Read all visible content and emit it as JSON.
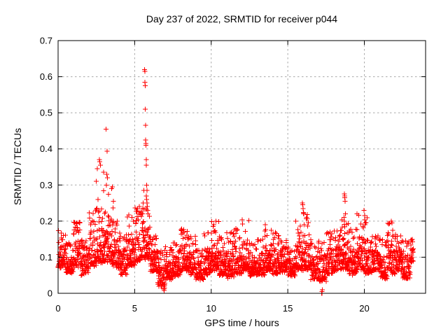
{
  "chart_data": {
    "type": "scatter",
    "title": "Day 237 of 2022, SRMTID for receiver p044",
    "xlabel": "GPS time / hours",
    "ylabel": "SRMTID / TECUs",
    "xlim": [
      0,
      24
    ],
    "ylim": [
      0,
      0.7
    ],
    "xticks": [
      "0",
      "5",
      "10",
      "15",
      "20"
    ],
    "xtick_values": [
      0,
      5,
      10,
      15,
      20
    ],
    "yticks": [
      "0",
      "0.1",
      "0.2",
      "0.3",
      "0.4",
      "0.5",
      "0.6",
      "0.7"
    ],
    "ytick_values": [
      0,
      0.1,
      0.2,
      0.3,
      0.4,
      0.5,
      0.6,
      0.7
    ],
    "grid": true,
    "legend_position": "none",
    "marker": {
      "shape": "plus",
      "color": "#ff0000",
      "size": 7
    },
    "data_extent_hours": [
      0.0,
      23.2
    ],
    "baseline_bins_format": [
      "t_start_h",
      "t_end_h",
      "y_min_TECU",
      "y_max_TECU",
      "n_points"
    ],
    "baseline_bins": [
      [
        0.0,
        0.5,
        0.06,
        0.18,
        60
      ],
      [
        0.5,
        1.0,
        0.05,
        0.14,
        60
      ],
      [
        1.0,
        1.5,
        0.06,
        0.2,
        60
      ],
      [
        1.5,
        2.0,
        0.04,
        0.15,
        60
      ],
      [
        2.0,
        2.5,
        0.06,
        0.23,
        60
      ],
      [
        2.5,
        3.0,
        0.07,
        0.24,
        60
      ],
      [
        3.0,
        3.5,
        0.07,
        0.23,
        60
      ],
      [
        3.5,
        4.0,
        0.06,
        0.2,
        60
      ],
      [
        4.0,
        4.5,
        0.04,
        0.17,
        60
      ],
      [
        4.5,
        5.0,
        0.06,
        0.22,
        60
      ],
      [
        5.0,
        5.5,
        0.07,
        0.24,
        60
      ],
      [
        5.5,
        6.0,
        0.08,
        0.24,
        60
      ],
      [
        6.0,
        6.5,
        0.05,
        0.16,
        60
      ],
      [
        6.5,
        7.0,
        0.01,
        0.12,
        60
      ],
      [
        7.0,
        7.5,
        0.03,
        0.13,
        60
      ],
      [
        7.5,
        8.0,
        0.04,
        0.14,
        60
      ],
      [
        8.0,
        8.5,
        0.05,
        0.18,
        60
      ],
      [
        8.5,
        9.0,
        0.04,
        0.16,
        60
      ],
      [
        9.0,
        9.5,
        0.03,
        0.12,
        60
      ],
      [
        9.5,
        10.0,
        0.04,
        0.17,
        60
      ],
      [
        10.0,
        10.5,
        0.05,
        0.2,
        60
      ],
      [
        10.5,
        11.0,
        0.04,
        0.16,
        60
      ],
      [
        11.0,
        11.5,
        0.03,
        0.17,
        60
      ],
      [
        11.5,
        12.0,
        0.04,
        0.18,
        60
      ],
      [
        12.0,
        12.5,
        0.05,
        0.21,
        60
      ],
      [
        12.5,
        13.0,
        0.04,
        0.14,
        60
      ],
      [
        13.0,
        13.5,
        0.04,
        0.15,
        60
      ],
      [
        13.5,
        14.0,
        0.05,
        0.19,
        60
      ],
      [
        14.0,
        14.5,
        0.04,
        0.17,
        60
      ],
      [
        14.5,
        15.0,
        0.05,
        0.15,
        60
      ],
      [
        15.0,
        15.5,
        0.04,
        0.13,
        60
      ],
      [
        15.5,
        16.0,
        0.05,
        0.2,
        60
      ],
      [
        16.0,
        16.5,
        0.05,
        0.23,
        60
      ],
      [
        16.5,
        17.0,
        0.03,
        0.14,
        60
      ],
      [
        17.0,
        17.5,
        0.02,
        0.15,
        60
      ],
      [
        17.5,
        18.0,
        0.04,
        0.17,
        60
      ],
      [
        18.0,
        18.5,
        0.05,
        0.18,
        60
      ],
      [
        18.5,
        19.0,
        0.05,
        0.21,
        60
      ],
      [
        19.0,
        19.5,
        0.04,
        0.18,
        60
      ],
      [
        19.5,
        20.0,
        0.05,
        0.22,
        60
      ],
      [
        20.0,
        20.5,
        0.04,
        0.21,
        60
      ],
      [
        20.5,
        21.0,
        0.05,
        0.16,
        60
      ],
      [
        21.0,
        21.5,
        0.03,
        0.15,
        60
      ],
      [
        21.5,
        22.0,
        0.04,
        0.2,
        60
      ],
      [
        22.0,
        22.5,
        0.05,
        0.17,
        60
      ],
      [
        22.5,
        23.0,
        0.03,
        0.15,
        60
      ],
      [
        23.0,
        23.2,
        0.08,
        0.15,
        25
      ]
    ],
    "spike_points": [
      [
        2.5,
        0.31
      ],
      [
        2.55,
        0.345
      ],
      [
        2.6,
        0.26
      ],
      [
        2.7,
        0.37
      ],
      [
        2.73,
        0.365
      ],
      [
        2.76,
        0.355
      ],
      [
        2.97,
        0.335
      ],
      [
        2.98,
        0.284
      ],
      [
        3.13,
        0.455
      ],
      [
        3.2,
        0.394
      ],
      [
        3.18,
        0.33
      ],
      [
        3.15,
        0.3
      ],
      [
        3.22,
        0.32
      ],
      [
        3.28,
        0.274
      ],
      [
        3.5,
        0.29
      ],
      [
        3.55,
        0.295
      ],
      [
        3.58,
        0.237
      ],
      [
        3.62,
        0.255
      ],
      [
        5.5,
        0.22
      ],
      [
        5.55,
        0.25
      ],
      [
        5.6,
        0.285
      ],
      [
        5.65,
        0.62
      ],
      [
        5.67,
        0.615
      ],
      [
        5.66,
        0.585
      ],
      [
        5.68,
        0.575
      ],
      [
        5.7,
        0.51
      ],
      [
        5.71,
        0.465
      ],
      [
        5.72,
        0.425
      ],
      [
        5.73,
        0.415
      ],
      [
        5.74,
        0.41
      ],
      [
        5.76,
        0.37
      ],
      [
        5.77,
        0.355
      ],
      [
        5.79,
        0.3
      ],
      [
        5.8,
        0.285
      ],
      [
        5.75,
        0.27
      ],
      [
        5.78,
        0.26
      ],
      [
        5.81,
        0.25
      ],
      [
        5.83,
        0.24
      ],
      [
        5.85,
        0.23
      ],
      [
        5.87,
        0.22
      ],
      [
        6.9,
        0.012
      ],
      [
        6.93,
        0.008
      ],
      [
        6.95,
        0.015
      ],
      [
        15.95,
        0.25
      ],
      [
        15.97,
        0.245
      ],
      [
        16.0,
        0.235
      ],
      [
        16.05,
        0.22
      ],
      [
        16.08,
        0.19
      ],
      [
        17.2,
        0.0
      ],
      [
        17.22,
        0.0
      ],
      [
        17.23,
        0.0
      ],
      [
        17.24,
        0.005
      ],
      [
        17.25,
        0.01
      ],
      [
        18.68,
        0.21
      ],
      [
        18.7,
        0.275
      ],
      [
        18.72,
        0.27
      ],
      [
        18.73,
        0.265
      ],
      [
        18.75,
        0.255
      ],
      [
        18.77,
        0.22
      ],
      [
        19.98,
        0.23
      ],
      [
        20.02,
        0.215
      ],
      [
        20.06,
        0.195
      ],
      [
        21.75,
        0.2
      ],
      [
        21.8,
        0.195
      ],
      [
        21.85,
        0.175
      ]
    ]
  },
  "colors": {
    "marker": "#ff0000",
    "grid": "#a8a8a8",
    "frame": "#000000",
    "background": "#ffffff",
    "text": "#000000"
  }
}
